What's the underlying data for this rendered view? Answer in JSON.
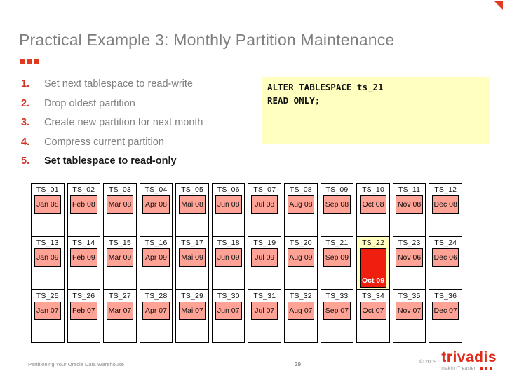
{
  "slide": {
    "title": "Practical Example 3: Monthly Partition Maintenance",
    "steps": [
      {
        "num": "1.",
        "text": "Set next tablespace to read-write",
        "strong": false
      },
      {
        "num": "2.",
        "text": "Drop oldest partition",
        "strong": false
      },
      {
        "num": "3.",
        "text": "Create new partition for next month",
        "strong": false
      },
      {
        "num": "4.",
        "text": "Compress current partition",
        "strong": false
      },
      {
        "num": "5.",
        "text": "Set tablespace to read-only",
        "strong": true
      }
    ],
    "code": {
      "lines": [
        "ALTER TABLESPACE ts_21",
        "READ ONLY;"
      ]
    }
  },
  "grid": {
    "rows": [
      {
        "cells": [
          {
            "ts": "TS_01",
            "month": "Jan 08",
            "state": "normal"
          },
          {
            "ts": "TS_02",
            "month": "Feb 08",
            "state": "normal"
          },
          {
            "ts": "TS_03",
            "month": "Mar 08",
            "state": "normal"
          },
          {
            "ts": "TS_04",
            "month": "Apr 08",
            "state": "normal"
          },
          {
            "ts": "TS_05",
            "month": "Mai 08",
            "state": "normal"
          },
          {
            "ts": "TS_06",
            "month": "Jun 08",
            "state": "normal"
          },
          {
            "ts": "TS_07",
            "month": "Jul 08",
            "state": "normal"
          },
          {
            "ts": "TS_08",
            "month": "Aug 08",
            "state": "normal"
          },
          {
            "ts": "TS_09",
            "month": "Sep 08",
            "state": "normal"
          },
          {
            "ts": "TS_10",
            "month": "Oct 08",
            "state": "normal"
          },
          {
            "ts": "TS_11",
            "month": "Nov 08",
            "state": "normal"
          },
          {
            "ts": "TS_12",
            "month": "Dec 08",
            "state": "normal"
          }
        ]
      },
      {
        "cells": [
          {
            "ts": "TS_13",
            "month": "Jan 09",
            "state": "normal"
          },
          {
            "ts": "TS_14",
            "month": "Feb 09",
            "state": "normal"
          },
          {
            "ts": "TS_15",
            "month": "Mar 09",
            "state": "normal"
          },
          {
            "ts": "TS_16",
            "month": "Apr 09",
            "state": "normal"
          },
          {
            "ts": "TS_17",
            "month": "Mai 09",
            "state": "normal"
          },
          {
            "ts": "TS_18",
            "month": "Jun 09",
            "state": "normal"
          },
          {
            "ts": "TS_19",
            "month": "Jul 09",
            "state": "normal"
          },
          {
            "ts": "TS_20",
            "month": "Aug 09",
            "state": "normal"
          },
          {
            "ts": "TS_21",
            "month": "Sep 09",
            "state": "normal"
          },
          {
            "ts": "TS_22",
            "month": "Oct 09",
            "state": "highlight"
          },
          {
            "ts": "TS_23",
            "month": "Nov 06",
            "state": "normal"
          },
          {
            "ts": "TS_24",
            "month": "Dec 06",
            "state": "normal"
          }
        ]
      },
      {
        "cells": [
          {
            "ts": "TS_25",
            "month": "Jan 07",
            "state": "normal"
          },
          {
            "ts": "TS_26",
            "month": "Feb 07",
            "state": "normal"
          },
          {
            "ts": "TS_27",
            "month": "Mar 07",
            "state": "normal"
          },
          {
            "ts": "TS_28",
            "month": "Apr 07",
            "state": "normal"
          },
          {
            "ts": "TS_29",
            "month": "Mai 07",
            "state": "normal"
          },
          {
            "ts": "TS_30",
            "month": "Jun 07",
            "state": "normal"
          },
          {
            "ts": "TS_31",
            "month": "Jul 07",
            "state": "normal"
          },
          {
            "ts": "TS_32",
            "month": "Aug 07",
            "state": "normal"
          },
          {
            "ts": "TS_33",
            "month": "Sep 07",
            "state": "normal"
          },
          {
            "ts": "TS_34",
            "month": "Oct 07",
            "state": "normal"
          },
          {
            "ts": "TS_35",
            "month": "Nov 07",
            "state": "normal"
          },
          {
            "ts": "TS_36",
            "month": "Dec 07",
            "state": "normal"
          }
        ]
      }
    ]
  },
  "footer": {
    "left": "Partitioning Your Oracle Data Warehouse",
    "page": "29",
    "copyright": "© 2009",
    "logo_text": "trivadis",
    "tagline": "makin IT easier."
  },
  "colors": {
    "accent_red": "#e03a20",
    "step_red": "#cc3327",
    "text_gray": "#7f7f7f",
    "code_bg": "#ffffc0",
    "month_pink": "#ffa396",
    "hl_red": "#f01e0e",
    "hl_cell_bg": "#ffffc0",
    "logo_red": "#e02a1a"
  }
}
